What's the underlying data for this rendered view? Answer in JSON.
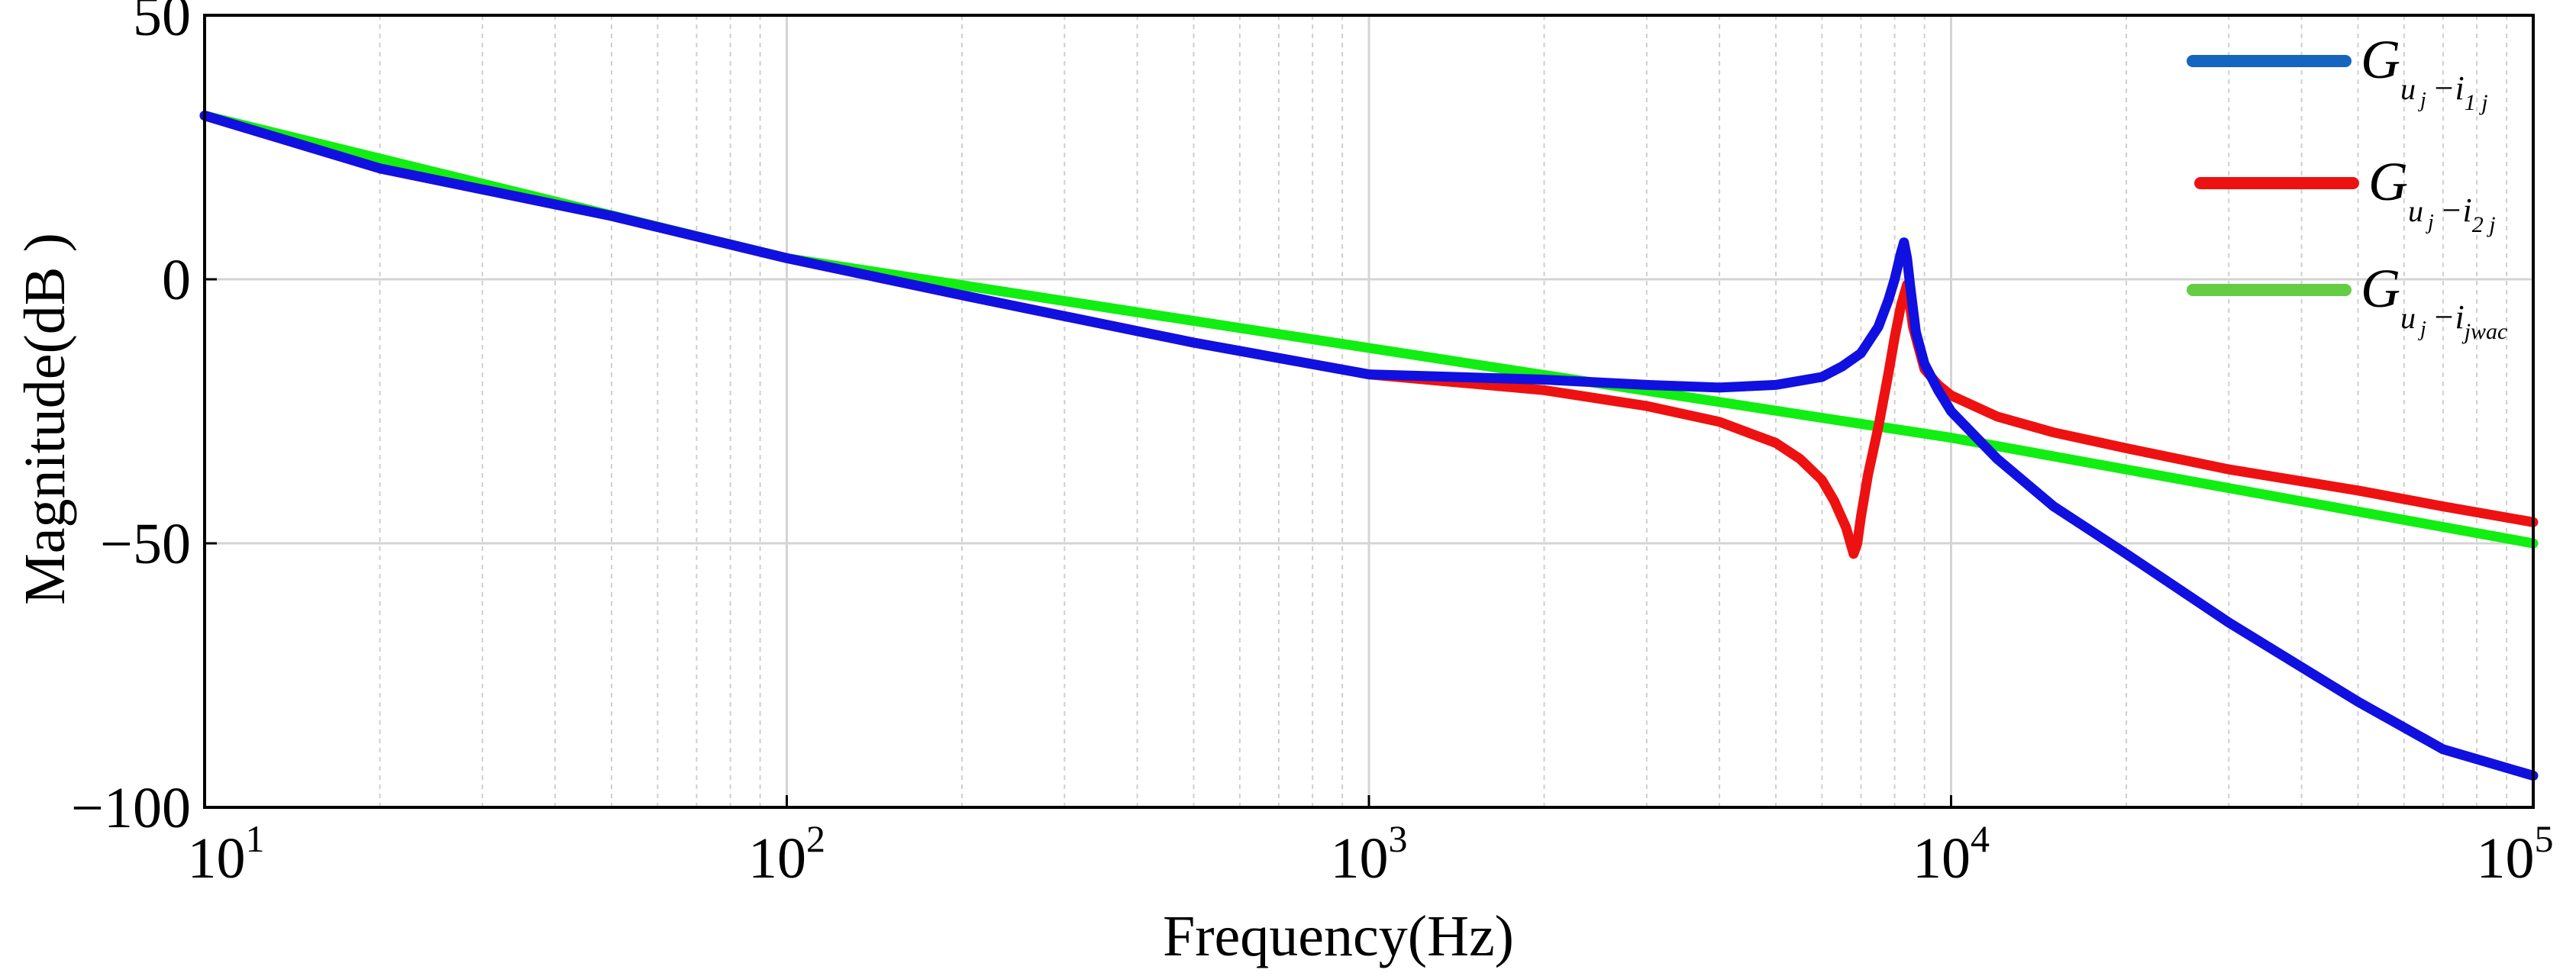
{
  "chart_data": {
    "type": "line",
    "title": "",
    "xlabel": "Frequency(Hz)",
    "ylabel": "Magnitude(dB )",
    "xscale": "log",
    "xlim": [
      10,
      100000
    ],
    "ylim": [
      -100,
      50
    ],
    "grid": true,
    "legend_position": "top-right",
    "x_ticks": [
      {
        "base": "10",
        "exp": "1",
        "value": 10
      },
      {
        "base": "10",
        "exp": "2",
        "value": 100
      },
      {
        "base": "10",
        "exp": "3",
        "value": 1000
      },
      {
        "base": "10",
        "exp": "4",
        "value": 10000
      },
      {
        "base": "10",
        "exp": "5",
        "value": 100000
      }
    ],
    "y_ticks": [
      {
        "label": "50",
        "value": 50
      },
      {
        "label": "0",
        "value": 0
      },
      {
        "label": "−50",
        "value": -50
      },
      {
        "label": "−100",
        "value": -100
      }
    ],
    "series": [
      {
        "name": "G_{u_j - i_{1j}}",
        "legend": {
          "main": "G",
          "sub1": "u",
          "sub2": "j",
          "dash": "−i",
          "sub3": "1 j",
          "sub3b": ""
        },
        "color": "#1010e0",
        "legend_color": "#1565c0",
        "x": [
          10,
          20,
          50,
          100,
          200,
          500,
          1000,
          2000,
          3000,
          4000,
          5000,
          6000,
          6500,
          7000,
          7500,
          7800,
          8000,
          8200,
          8300,
          8400,
          8500,
          8700,
          9000,
          9500,
          10000,
          12000,
          15000,
          20000,
          30000,
          50000,
          70000,
          100000
        ],
        "values": [
          31,
          21,
          12,
          4,
          -3,
          -12,
          -18,
          -19,
          -20,
          -20.5,
          -20,
          -18.5,
          -16.5,
          -14,
          -9,
          -4,
          0,
          5,
          7,
          4,
          -1,
          -10,
          -16,
          -21,
          -25,
          -34,
          -43,
          -52,
          -65,
          -80,
          -89,
          -94
        ]
      },
      {
        "name": "G_{u_j - i_{2j}}",
        "legend": {
          "main": "G",
          "sub1": "u",
          "sub2": "j",
          "dash": "−i",
          "sub3": "2 j",
          "sub3b": ""
        },
        "color": "#ee1111",
        "legend_color": "#ee1111",
        "x": [
          10,
          20,
          50,
          100,
          200,
          500,
          1000,
          2000,
          3000,
          4000,
          5000,
          5500,
          6000,
          6300,
          6600,
          6800,
          6900,
          7000,
          7200,
          7500,
          7800,
          8000,
          8200,
          8400,
          8600,
          9000,
          9500,
          10000,
          12000,
          15000,
          20000,
          30000,
          50000,
          70000,
          100000
        ],
        "values": [
          31,
          21,
          12,
          4,
          -3,
          -12,
          -18,
          -21,
          -24,
          -27,
          -31,
          -34,
          -38,
          -42,
          -47,
          -52,
          -50,
          -45,
          -37,
          -28,
          -18,
          -11,
          -5,
          -1,
          -9,
          -17,
          -20,
          -22,
          -26,
          -29,
          -32,
          -36,
          -40,
          -43,
          -46
        ]
      },
      {
        "name": "G_{u_j - i_{jwac}}",
        "legend": {
          "main": "G",
          "sub1": "u",
          "sub2": "j",
          "dash": "−i",
          "sub3": "jwac",
          "sub3b": ""
        },
        "color": "#11ee11",
        "legend_color": "#66cc44",
        "x": [
          10,
          100,
          1000,
          10000,
          100000
        ],
        "values": [
          31,
          4,
          -13,
          -30,
          -50
        ]
      }
    ]
  }
}
